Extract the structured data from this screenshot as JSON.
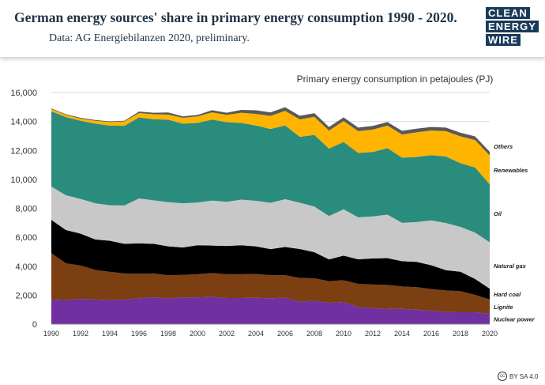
{
  "header": {
    "title": "German energy sources' share in primary energy consumption 1990 - 2020.",
    "subtitle": "Data: AG Energiebilanzen 2020, preliminary."
  },
  "logo": {
    "lines": [
      "CLEAN",
      "ENERGY",
      "WIRE"
    ]
  },
  "footer": {
    "license_icon": "cc",
    "license": "BY SA 4.0"
  },
  "chart_data": {
    "type": "area",
    "stacked": true,
    "title": "Primary energy consumption in petajoules (PJ)",
    "xlabel": "",
    "ylabel": "",
    "ylim": [
      0,
      16000
    ],
    "yticks": [
      0,
      2000,
      4000,
      6000,
      8000,
      10000,
      12000,
      14000,
      16000
    ],
    "ytick_labels": [
      "0",
      "2,000",
      "4,000",
      "6,000",
      "8,000",
      "10,000",
      "12,000",
      "14,000",
      "16,000"
    ],
    "xlim": [
      1990,
      2020
    ],
    "xticks": [
      1990,
      1992,
      1994,
      1996,
      1998,
      2000,
      2002,
      2004,
      2006,
      2008,
      2010,
      2012,
      2014,
      2016,
      2018,
      2020
    ],
    "xtick_labels": [
      "1990",
      "1992",
      "1994",
      "1996",
      "1998",
      "2000",
      "2002",
      "2004",
      "2006",
      "2008",
      "2010",
      "2012",
      "2014",
      "2016",
      "2018",
      "2020"
    ],
    "x": [
      1990,
      1991,
      1992,
      1993,
      1994,
      1995,
      1996,
      1997,
      1998,
      1999,
      2000,
      2001,
      2002,
      2003,
      2004,
      2005,
      2006,
      2007,
      2008,
      2009,
      2010,
      2011,
      2012,
      2013,
      2014,
      2015,
      2016,
      2017,
      2018,
      2019,
      2020
    ],
    "series": [
      {
        "name": "Nuclear power",
        "color": "#7030a0",
        "values": [
          1700,
          1650,
          1750,
          1700,
          1660,
          1700,
          1780,
          1850,
          1770,
          1850,
          1850,
          1880,
          1800,
          1800,
          1820,
          1780,
          1830,
          1540,
          1620,
          1470,
          1530,
          1180,
          1090,
          1060,
          1050,
          1000,
          920,
          830,
          820,
          820,
          700
        ]
      },
      {
        "name": "Lignite",
        "color": "#7b3f12",
        "values": [
          3200,
          2550,
          2300,
          2050,
          1950,
          1800,
          1700,
          1650,
          1600,
          1550,
          1600,
          1650,
          1650,
          1650,
          1650,
          1600,
          1550,
          1650,
          1550,
          1500,
          1500,
          1600,
          1650,
          1650,
          1550,
          1550,
          1500,
          1500,
          1450,
          1200,
          1000
        ]
      },
      {
        "name": "Hard coal",
        "color": "#000000",
        "values": [
          2300,
          2300,
          2200,
          2100,
          2150,
          2050,
          2100,
          2050,
          2000,
          1900,
          2000,
          1900,
          1950,
          2000,
          1900,
          1800,
          1950,
          2000,
          1800,
          1500,
          1700,
          1700,
          1800,
          1850,
          1750,
          1750,
          1650,
          1400,
          1350,
          1100,
          750
        ]
      },
      {
        "name": "Natural gas",
        "color": "#c8c8c8",
        "values": [
          2300,
          2400,
          2400,
          2500,
          2450,
          2650,
          3100,
          3000,
          3050,
          3050,
          2950,
          3100,
          3050,
          3150,
          3150,
          3200,
          3300,
          3200,
          3150,
          3000,
          3200,
          2900,
          2900,
          3000,
          2650,
          2750,
          3100,
          3250,
          3100,
          3200,
          3200
        ]
      },
      {
        "name": "Oil",
        "color": "#2a8c7d",
        "values": [
          5200,
          5400,
          5400,
          5500,
          5500,
          5500,
          5600,
          5600,
          5700,
          5500,
          5500,
          5600,
          5500,
          5300,
          5200,
          5100,
          5100,
          4550,
          4950,
          4650,
          4650,
          4450,
          4450,
          4600,
          4500,
          4500,
          4500,
          4600,
          4400,
          4500,
          4000
        ]
      },
      {
        "name": "Renewables",
        "color": "#ffb400",
        "values": [
          150,
          150,
          150,
          200,
          250,
          300,
          300,
          350,
          350,
          400,
          450,
          500,
          500,
          700,
          800,
          900,
          1000,
          1200,
          1250,
          1250,
          1450,
          1500,
          1550,
          1550,
          1600,
          1700,
          1700,
          1750,
          1850,
          1900,
          2000
        ]
      },
      {
        "name": "Others",
        "color": "#595959",
        "values": [
          50,
          50,
          50,
          50,
          50,
          50,
          100,
          100,
          150,
          100,
          100,
          150,
          150,
          200,
          250,
          250,
          250,
          250,
          250,
          250,
          250,
          250,
          250,
          250,
          250,
          250,
          250,
          250,
          250,
          250,
          250
        ]
      }
    ],
    "legend": "right"
  }
}
